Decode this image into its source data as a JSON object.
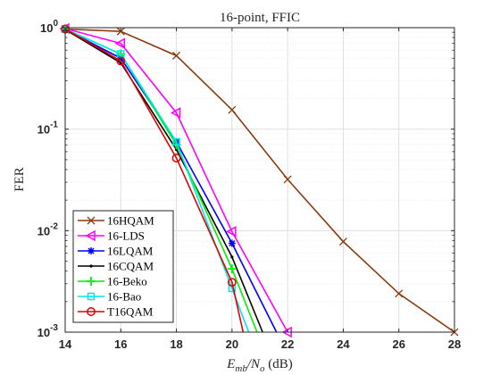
{
  "chart_data": {
    "type": "line",
    "title": "16-point, FFIC",
    "xlabel": "E_mb/N_o (dB)",
    "ylabel": "FER",
    "xlim": [
      14,
      28
    ],
    "ylim": [
      0.001,
      1
    ],
    "y_scale": "log",
    "grid": true,
    "legend_position": "bottom-left",
    "x_ticks": [
      14,
      16,
      18,
      20,
      22,
      24,
      26,
      28
    ],
    "y_ticks": [
      0.001,
      0.01,
      0.1,
      1
    ],
    "series": [
      {
        "name": "16HQAM",
        "color": "#8B3A0E",
        "marker": "x",
        "x": [
          14,
          16,
          18,
          20,
          22,
          24,
          26,
          28
        ],
        "y": [
          0.97,
          0.92,
          0.53,
          0.155,
          0.032,
          0.0078,
          0.0024,
          0.001
        ]
      },
      {
        "name": "16-LDS",
        "color": "#ff00ff",
        "marker": "triangle-left",
        "x": [
          14,
          16,
          18,
          20,
          22
        ],
        "y": [
          0.98,
          0.7,
          0.145,
          0.0098,
          0.001
        ]
      },
      {
        "name": "16LQAM",
        "color": "#0000ff",
        "marker": "asterisk",
        "x": [
          14,
          16,
          18,
          20,
          21.6
        ],
        "y": [
          0.96,
          0.5,
          0.075,
          0.0075,
          0.001
        ]
      },
      {
        "name": "16CQAM",
        "color": "#000000",
        "marker": "dot",
        "x": [
          14,
          16,
          18,
          20,
          21.1
        ],
        "y": [
          0.96,
          0.45,
          0.063,
          0.0055,
          0.001
        ]
      },
      {
        "name": "16-Beko",
        "color": "#00ee00",
        "marker": "plus",
        "x": [
          14,
          16,
          18,
          20,
          20.9
        ],
        "y": [
          0.97,
          0.55,
          0.07,
          0.0042,
          0.001
        ]
      },
      {
        "name": "16-Bao",
        "color": "#00e5ee",
        "marker": "square",
        "x": [
          14,
          16,
          18,
          20,
          20.6
        ],
        "y": [
          0.97,
          0.55,
          0.075,
          0.0027,
          0.001
        ]
      },
      {
        "name": "T16QAM",
        "color": "#e00000",
        "marker": "circle",
        "x": [
          14,
          16,
          18,
          20,
          20.4
        ],
        "y": [
          0.97,
          0.47,
          0.052,
          0.0031,
          0.001
        ]
      }
    ]
  }
}
